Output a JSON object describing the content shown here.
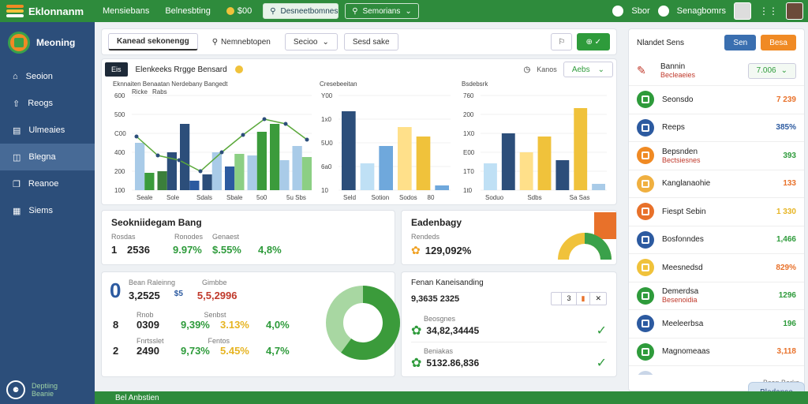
{
  "topbar": {
    "app_name": "Eklonnanm",
    "nav": [
      "Mensiebans",
      "Belnesbting",
      "$00"
    ],
    "search_placeholder": "Desneetbomnes",
    "filter_label": "Semorians",
    "user_items": [
      "Sbor",
      "Senagbomrs"
    ]
  },
  "sidebar": {
    "title": "Meoning",
    "items": [
      {
        "label": "Seoion",
        "icon": "home-icon"
      },
      {
        "label": "Reogs",
        "icon": "upload-icon"
      },
      {
        "label": "Ulmeaies",
        "icon": "book-icon"
      },
      {
        "label": "Blegna",
        "icon": "layers-icon"
      },
      {
        "label": "Reanoe",
        "icon": "copy-icon"
      },
      {
        "label": "Siems",
        "icon": "grid-icon"
      }
    ],
    "footer_line1": "Deptiing",
    "footer_line2": "Beanie"
  },
  "toolbar": {
    "tab_active": "Kanead sekonengg",
    "tab_search": "Nemnebtopen",
    "select_label": "Secioo",
    "button_label": "Sesd sake"
  },
  "chart_panel": {
    "badge": "Eis",
    "title": "Elenkeeks Rrgge Bensard",
    "right_label": "Kanos",
    "right_select": "Aebs"
  },
  "chart_data": [
    {
      "type": "bar",
      "title": "Eknnaiten Benaatan Nerdebany Bangedt",
      "legend": [
        "Ricke",
        "Rabs"
      ],
      "ylabels": [
        "600",
        "500",
        "C00",
        "400",
        "200",
        "100"
      ],
      "xlabels": [
        "Seale",
        "Sole",
        "Sdals",
        "Sbale",
        "5o0",
        "5u Sbs"
      ],
      "ylim": [
        0,
        600
      ],
      "series": [
        {
          "values": [
            300,
            120,
            420,
            100,
            150,
            220,
            420,
            280
          ]
        },
        {
          "values": [
            110,
            240,
            60,
            240,
            230,
            370,
            190,
            210
          ]
        }
      ],
      "line": [
        340,
        220,
        190,
        120,
        240,
        350,
        450,
        420,
        320
      ]
    },
    {
      "type": "bar",
      "title": "Cresebeeitan",
      "ylabels": [
        "Y00",
        "1x0",
        "5U0",
        "6a0",
        "10"
      ],
      "xlabels": [
        "Seld",
        "Sotion",
        "Sodos",
        "80"
      ],
      "ylim": [
        0,
        600
      ],
      "values": [
        500,
        170,
        280,
        400,
        340,
        30
      ]
    },
    {
      "type": "bar",
      "title": "Bsdebsrk",
      "ylabels": [
        "760",
        "200",
        "1X0",
        "E00",
        "1T0",
        "1t0"
      ],
      "xlabels": [
        "Soduo",
        "Sdbs",
        "Sa Sas"
      ],
      "ylim": [
        0,
        600
      ],
      "values": [
        170,
        360,
        240,
        340,
        190,
        520,
        40
      ]
    }
  ],
  "stats1": {
    "title": "Seokniidegam Bang",
    "labels": [
      "Rosdas",
      "Ronodes",
      "Genaest",
      ""
    ],
    "values": [
      "2536",
      "9.97%",
      "$.55%",
      "4,8%"
    ],
    "value_colors": [
      "#222222",
      "#2e9b3b",
      "#2e9b3b",
      "#2e9b3b"
    ],
    "marker": "1"
  },
  "gauge": {
    "title": "Eadenbagy",
    "label": "Rendeds",
    "value": "129,092%",
    "colors": [
      "#e8712a",
      "#f0c23b",
      "#3aa14a"
    ]
  },
  "stats2": {
    "big_digit": "0",
    "header_labels": [
      "Bean Raleinng",
      "Gimbbe"
    ],
    "row1_values": [
      "3,2525",
      "$5",
      "5,5,2996"
    ],
    "rows": [
      {
        "marker": "8",
        "labels": [
          "Rnob",
          "Senbst"
        ],
        "values": [
          "0309",
          "9,39%",
          "3.13%",
          "4,0%"
        ]
      },
      {
        "marker": "2",
        "labels": [
          "Fnrtsslet",
          "Fentos"
        ],
        "values": [
          "2490",
          "9,73%",
          "5.45%",
          "4,7%"
        ]
      }
    ],
    "colors": [
      "#222222",
      "#2e9b3b",
      "#e6b422",
      "#2e9b3b"
    ]
  },
  "donut": {
    "value": 0.6,
    "colors": [
      "#3b9b3b",
      "#a8d7a2"
    ]
  },
  "kpi": {
    "title": "Fenan Kaneisanding",
    "value1": "9,3635 2325",
    "pager": "3",
    "rows": [
      {
        "label": "Beosgnes",
        "value": "34,82,34445"
      },
      {
        "label": "Beniakas",
        "value": "5132.86,836"
      }
    ]
  },
  "right_panel": {
    "title": "Nlandet Sens",
    "button1": "Sen",
    "button2": "Besa",
    "head_name": "Bannin",
    "head_sub": "Becleaeies",
    "head_select": "7.006",
    "rows": [
      {
        "name": "Seonsdo",
        "value": "7 239",
        "icon_color": "#2e9b3b",
        "value_color": "#e8712a"
      },
      {
        "name": "Reeps",
        "value": "385%",
        "icon_color": "#2c5aa0",
        "value_color": "#2c5aa0"
      },
      {
        "name": "Bepsnden",
        "sub": "Bectsiesnes",
        "value": "393",
        "icon_color": "#f08a24",
        "value_color": "#2e9b3b"
      },
      {
        "name": "Kanglanaohie",
        "value": "133",
        "icon_color": "#f0b040",
        "value_color": "#e8712a"
      },
      {
        "name": "Fiespt Sebin",
        "value": "1 330",
        "icon_color": "#e8712a",
        "value_color": "#e6b422"
      },
      {
        "name": "Bosfonndes",
        "value": "1,466",
        "icon_color": "#2c5aa0",
        "value_color": "#2e9b3b"
      },
      {
        "name": "Meesnedsd",
        "value": "829%",
        "icon_color": "#f0c23b",
        "value_color": "#e8712a"
      },
      {
        "name": "Demerdsa",
        "sub": "Besenoidia",
        "value": "1296",
        "icon_color": "#2e9b3b",
        "value_color": "#2e9b3b"
      },
      {
        "name": "Meeleerbsa",
        "value": "196",
        "icon_color": "#2c5aa0",
        "value_color": "#2e9b3b"
      },
      {
        "name": "Magnomeaas",
        "value": "3,118",
        "icon_color": "#2e9b3b",
        "value_color": "#e8712a"
      },
      {
        "name": "Besesdeans",
        "value": "",
        "icon_color": "#c9d6e8",
        "value_color": "#2e9b3b"
      }
    ],
    "footer_label": "Bsen Berks",
    "footer_button": "Bledanse"
  },
  "bottombar": {
    "label": "Bel Anbstien"
  }
}
